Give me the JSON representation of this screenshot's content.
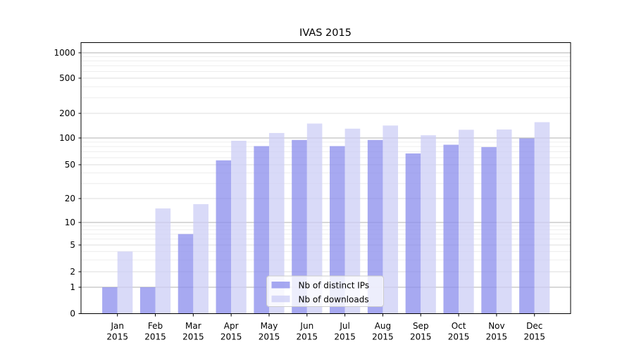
{
  "figure": {
    "title": "IVAS 2015"
  },
  "chart_data": {
    "type": "bar",
    "title": "IVAS 2015",
    "yscale": "symlog",
    "grid": true,
    "legend_position": "lower-center-inside",
    "ylim": [
      0,
      1300
    ],
    "yticks": [
      0,
      1,
      2,
      5,
      10,
      20,
      50,
      100,
      200,
      500,
      1000
    ],
    "minor_gridline_values": [
      3,
      4,
      6,
      7,
      8,
      9,
      30,
      40,
      60,
      70,
      80,
      90,
      300,
      400,
      600,
      700,
      800,
      900
    ],
    "categories": [
      "Jan 2015",
      "Feb 2015",
      "Mar 2015",
      "Apr 2015",
      "May 2015",
      "Jun 2015",
      "Jul 2015",
      "Aug 2015",
      "Sep 2015",
      "Oct 2015",
      "Nov 2015",
      "Dec 2015"
    ],
    "series": [
      {
        "name": "Nb of distinct IPs",
        "color": "#898cec",
        "opacity": 0.75,
        "apparent_color": "#a6a8f0",
        "values": [
          1,
          1,
          7,
          56,
          81,
          95,
          81,
          95,
          67,
          84,
          79,
          99
        ]
      },
      {
        "name": "Nb of downloads",
        "color": "#cccef6",
        "opacity": 0.75,
        "apparent_color": "#d9dbf8",
        "values": [
          4,
          15,
          17,
          93,
          115,
          150,
          130,
          142,
          108,
          126,
          127,
          156
        ]
      }
    ],
    "grid_colors": {
      "major": "#b2b2b2",
      "sub": "#dcdcdc",
      "minor": "#ececec"
    }
  }
}
